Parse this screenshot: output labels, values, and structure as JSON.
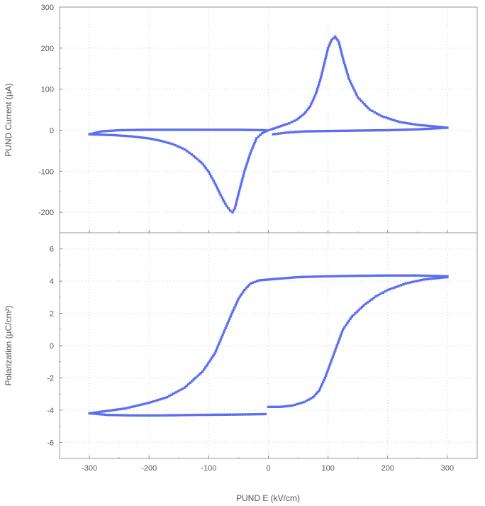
{
  "chart_data": [
    {
      "type": "line",
      "ylabel": "PUND Current (µA)",
      "xlim": [
        -350,
        350
      ],
      "ylim": [
        -250,
        300
      ],
      "x_ticks": [
        -300,
        -200,
        -100,
        0,
        100,
        200,
        300
      ],
      "y_ticks": [
        -200,
        -100,
        0,
        100,
        200,
        300
      ],
      "grid": true,
      "color": "#5b6ef0",
      "series": [
        {
          "points": [
            [
              8,
              -10
            ],
            [
              30,
              -6
            ],
            [
              60,
              -3
            ],
            [
              100,
              -2
            ],
            [
              150,
              -1
            ],
            [
              200,
              0
            ],
            [
              250,
              2
            ],
            [
              300,
              6
            ],
            [
              280,
              9
            ],
            [
              250,
              13
            ],
            [
              220,
              20
            ],
            [
              190,
              34
            ],
            [
              170,
              50
            ],
            [
              150,
              80
            ],
            [
              135,
              125
            ],
            [
              125,
              175
            ],
            [
              118,
              215
            ],
            [
              112,
              228
            ],
            [
              106,
              220
            ],
            [
              100,
              200
            ],
            [
              95,
              170
            ],
            [
              88,
              128
            ],
            [
              80,
              90
            ],
            [
              70,
              58
            ],
            [
              60,
              40
            ],
            [
              48,
              26
            ],
            [
              35,
              17
            ],
            [
              25,
              12
            ],
            [
              15,
              7
            ],
            [
              5,
              2
            ],
            [
              0,
              0
            ],
            [
              -10,
              -7
            ],
            [
              -20,
              -20
            ],
            [
              -30,
              -55
            ],
            [
              -40,
              -100
            ],
            [
              -50,
              -155
            ],
            [
              -56,
              -190
            ],
            [
              -60,
              -200
            ],
            [
              -64,
              -196
            ],
            [
              -70,
              -185
            ],
            [
              -80,
              -158
            ],
            [
              -90,
              -128
            ],
            [
              -100,
              -102
            ],
            [
              -110,
              -82
            ],
            [
              -125,
              -63
            ],
            [
              -140,
              -47
            ],
            [
              -160,
              -34
            ],
            [
              -180,
              -26
            ],
            [
              -200,
              -20
            ],
            [
              -230,
              -15
            ],
            [
              -260,
              -12
            ],
            [
              -300,
              -10
            ],
            [
              -280,
              -3
            ],
            [
              -250,
              0
            ],
            [
              -200,
              1
            ],
            [
              -150,
              1
            ],
            [
              -100,
              1
            ],
            [
              -50,
              1
            ],
            [
              -5,
              0
            ]
          ]
        }
      ]
    },
    {
      "type": "line",
      "xlabel": "PUND E (kV/cm)",
      "ylabel": "Polarization (µC/cm²)",
      "xlim": [
        -350,
        350
      ],
      "ylim": [
        -7,
        7
      ],
      "x_ticks": [
        -300,
        -200,
        -100,
        0,
        100,
        200,
        300
      ],
      "y_ticks": [
        -6,
        -4,
        -2,
        0,
        2,
        4,
        6
      ],
      "grid": true,
      "color": "#5b6ef0",
      "series": [
        {
          "points": [
            [
              0,
              -3.8
            ],
            [
              20,
              -3.8
            ],
            [
              40,
              -3.72
            ],
            [
              60,
              -3.5
            ],
            [
              75,
              -3.2
            ],
            [
              85,
              -2.8
            ],
            [
              95,
              -2.0
            ],
            [
              105,
              -1.0
            ],
            [
              115,
              0.0
            ],
            [
              125,
              1.0
            ],
            [
              140,
              1.8
            ],
            [
              160,
              2.5
            ],
            [
              180,
              3.05
            ],
            [
              200,
              3.45
            ],
            [
              230,
              3.85
            ],
            [
              260,
              4.1
            ],
            [
              300,
              4.25
            ]
          ]
        },
        {
          "points": [
            [
              300,
              4.3
            ],
            [
              250,
              4.35
            ],
            [
              200,
              4.35
            ],
            [
              150,
              4.33
            ],
            [
              100,
              4.3
            ],
            [
              50,
              4.25
            ],
            [
              0,
              4.1
            ],
            [
              -15,
              4.05
            ],
            [
              -30,
              3.85
            ],
            [
              -40,
              3.45
            ],
            [
              -50,
              2.9
            ],
            [
              -60,
              2.1
            ],
            [
              -75,
              0.8
            ],
            [
              -90,
              -0.5
            ],
            [
              -110,
              -1.6
            ],
            [
              -140,
              -2.6
            ],
            [
              -170,
              -3.2
            ],
            [
              -200,
              -3.55
            ],
            [
              -240,
              -3.9
            ],
            [
              -300,
              -4.2
            ],
            [
              -270,
              -4.3
            ],
            [
              -230,
              -4.33
            ],
            [
              -180,
              -4.33
            ],
            [
              -120,
              -4.3
            ],
            [
              -60,
              -4.28
            ],
            [
              -5,
              -4.25
            ]
          ]
        }
      ]
    }
  ]
}
